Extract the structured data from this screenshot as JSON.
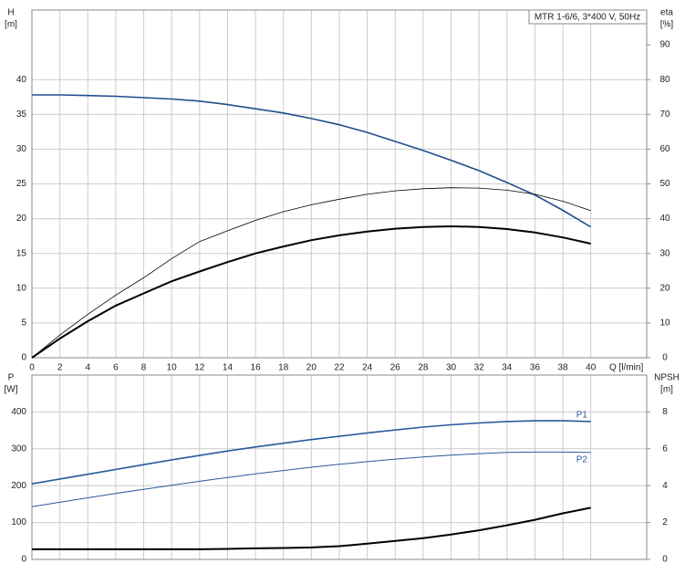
{
  "chart_data": [
    {
      "type": "line",
      "title": "MTR 1-6/6, 3*400 V, 50Hz",
      "y_label": "H",
      "y_unit": "[m]",
      "y2_label": "eta",
      "y2_unit": "[%]",
      "x_label": "Q [l/min]",
      "x": [
        0,
        2,
        4,
        6,
        8,
        10,
        12,
        14,
        16,
        18,
        20,
        22,
        24,
        26,
        28,
        30,
        32,
        34,
        36,
        38,
        40
      ],
      "xlim": [
        0,
        44
      ],
      "xticks": [
        0,
        2,
        4,
        6,
        8,
        10,
        12,
        14,
        16,
        18,
        20,
        22,
        24,
        26,
        28,
        30,
        32,
        34,
        36,
        38,
        40
      ],
      "ylim": [
        0,
        50
      ],
      "yticks": [
        0,
        5,
        10,
        15,
        20,
        25,
        30,
        35,
        40
      ],
      "y2lim": [
        0,
        100
      ],
      "y2ticks": [
        0,
        10,
        20,
        30,
        40,
        50,
        60,
        70,
        80,
        90
      ],
      "grid": true,
      "series": [
        {
          "color": "#1f4e8c",
          "values": [
            37.8,
            37.8,
            37.7,
            37.6,
            37.4,
            37.2,
            36.9,
            36.4,
            35.8,
            35.2,
            34.4,
            33.5,
            32.4,
            31.1,
            29.8,
            28.4,
            26.9,
            25.2,
            23.4,
            21.2,
            18.8
          ]
        },
        {
          "color": "#000000",
          "axis": "y2",
          "values": [
            0,
            6.5,
            12.5,
            18,
            23,
            28.5,
            33.4,
            36.5,
            39.5,
            42,
            44,
            45.6,
            47,
            48,
            48.6,
            48.9,
            48.8,
            48.2,
            47,
            45,
            42.3
          ]
        },
        {
          "color": "#000000",
          "axis": "y2",
          "values": [
            0,
            5.5,
            10.5,
            15,
            18.5,
            22,
            24.8,
            27.5,
            30,
            32,
            33.8,
            35.2,
            36.3,
            37.1,
            37.6,
            37.8,
            37.6,
            37,
            36,
            34.6,
            32.8
          ]
        }
      ]
    },
    {
      "type": "line",
      "y_label": "P",
      "y_unit": "[W]",
      "y2_label": "NPSH",
      "y2_unit": "[m]",
      "x": [
        0,
        2,
        4,
        6,
        8,
        10,
        12,
        14,
        16,
        18,
        20,
        22,
        24,
        26,
        28,
        30,
        32,
        34,
        36,
        38,
        40
      ],
      "xlim": [
        0,
        44
      ],
      "ylim": [
        0,
        500
      ],
      "yticks": [
        0,
        100,
        200,
        300,
        400
      ],
      "y2lim": [
        0,
        10
      ],
      "y2ticks": [
        0,
        2,
        4,
        6,
        8
      ],
      "grid": true,
      "series": [
        {
          "name": "P1",
          "color": "#2a5a9a",
          "values": [
            205,
            218,
            231,
            244,
            257,
            270,
            282,
            294,
            305,
            315,
            325,
            334,
            343,
            351,
            359,
            365,
            370,
            374,
            376,
            376,
            374
          ]
        },
        {
          "name": "P2",
          "color": "#2a5a9a",
          "values": [
            143,
            155,
            167,
            179,
            190,
            201,
            212,
            222,
            232,
            241,
            250,
            258,
            265,
            272,
            278,
            283,
            287,
            290,
            291,
            291,
            290
          ]
        },
        {
          "color": "#000000",
          "axis": "y2",
          "values": [
            0.55,
            0.55,
            0.55,
            0.55,
            0.55,
            0.55,
            0.55,
            0.57,
            0.6,
            0.62,
            0.65,
            0.72,
            0.85,
            1.0,
            1.15,
            1.35,
            1.58,
            1.85,
            2.15,
            2.5,
            2.8
          ]
        }
      ]
    }
  ]
}
